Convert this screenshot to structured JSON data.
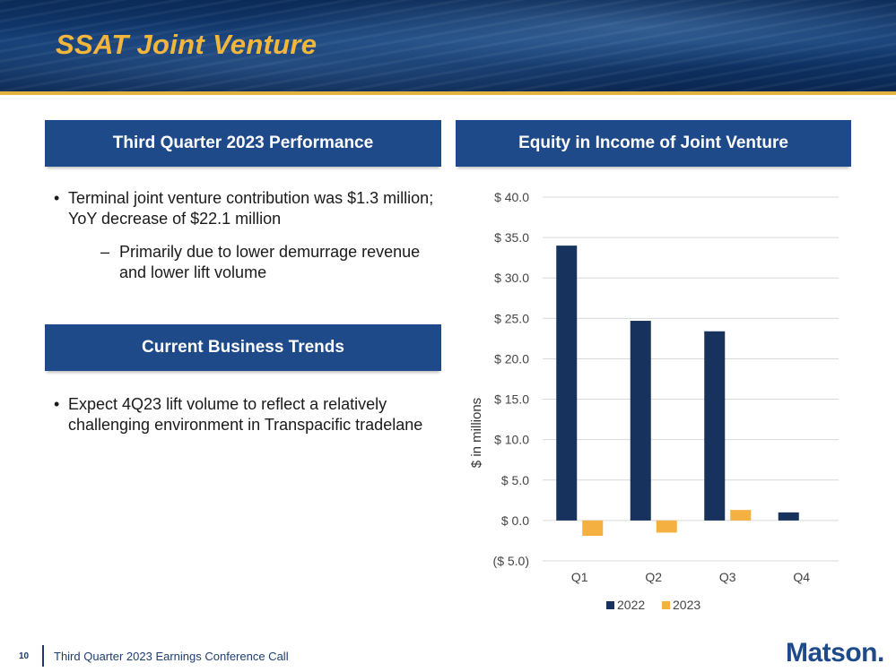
{
  "slide": {
    "title": "SSAT Joint Venture",
    "page_number": "10",
    "footer_text": "Third Quarter 2023 Earnings Conference Call",
    "logo_text": "Matson."
  },
  "performance": {
    "header": "Third Quarter 2023 Performance",
    "bullet_1": "Terminal joint venture contribution was $1.3 million; YoY decrease of $22.1 million",
    "sub_bullet_1": "Primarily due to lower demurrage revenue and lower lift volume"
  },
  "trends": {
    "header": "Current Business Trends",
    "bullet_1": "Expect 4Q23 lift volume to reflect a relatively challenging environment in Transpacific tradelane"
  },
  "colors": {
    "series_2022": "#17325c",
    "series_2023": "#f4b040",
    "header_bg": "#1f4a8a",
    "title": "#f2b63c"
  },
  "chart_data": {
    "type": "bar",
    "title": "Equity in Income of Joint Venture",
    "ylabel": "$ in millions",
    "xlabel": "",
    "categories": [
      "Q1",
      "Q2",
      "Q3",
      "Q4"
    ],
    "series": [
      {
        "name": "2022",
        "values": [
          34.0,
          24.7,
          23.4,
          1.0
        ]
      },
      {
        "name": "2023",
        "values": [
          -1.9,
          -1.5,
          1.3,
          null
        ]
      }
    ],
    "ylim": [
      -5,
      40
    ],
    "yticks": [
      -5,
      0,
      5,
      10,
      15,
      20,
      25,
      30,
      35,
      40
    ],
    "ytick_labels": [
      "($ 5.0)",
      "$ 0.0",
      "$ 5.0",
      "$ 10.0",
      "$ 15.0",
      "$ 20.0",
      "$ 25.0",
      "$ 30.0",
      "$ 35.0",
      "$ 40.0"
    ],
    "grid": true,
    "legend": "bottom"
  }
}
